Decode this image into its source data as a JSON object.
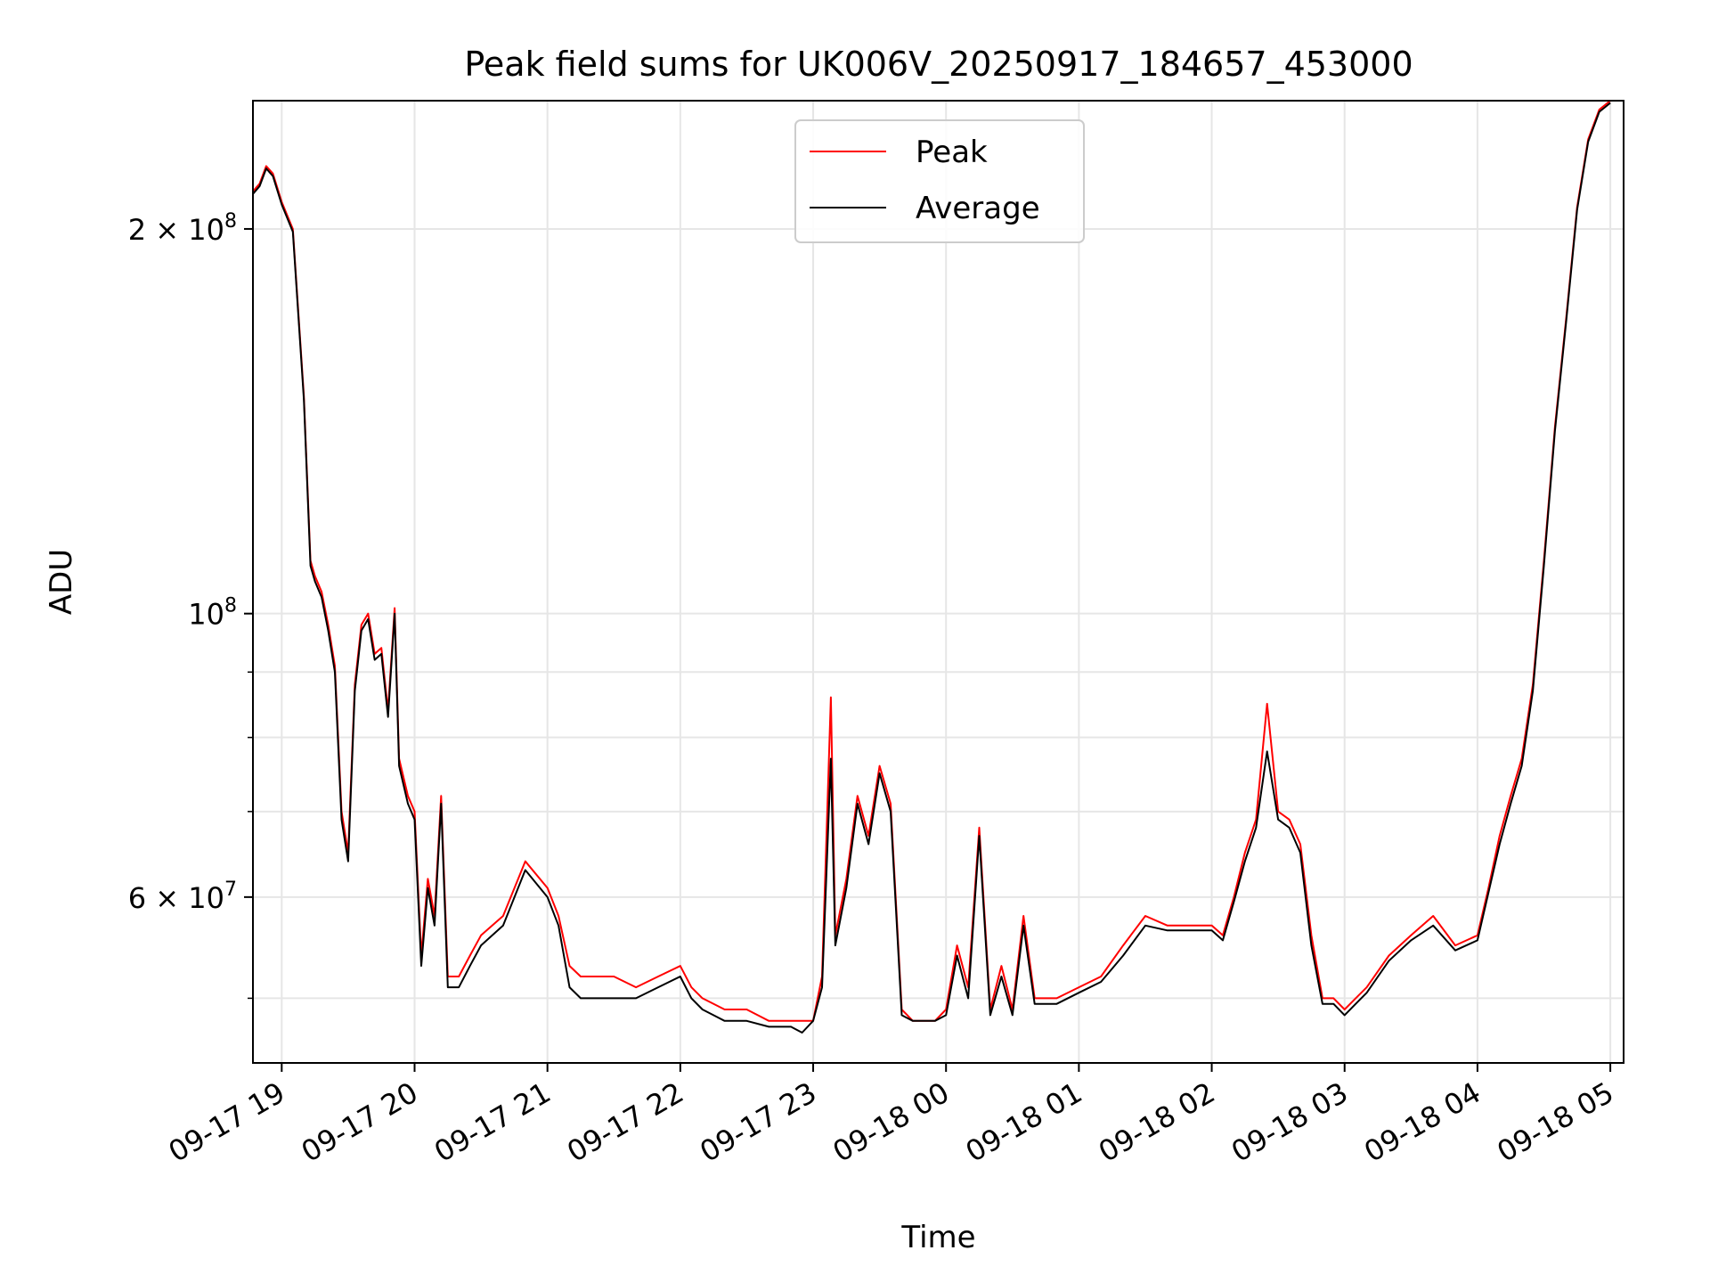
{
  "chart_data": {
    "type": "line",
    "title": "Peak field sums for UK006V_20250917_184657_453000",
    "xlabel": "Time",
    "ylabel": "ADU",
    "y_scale": "log",
    "ylim": [
      44500000,
      252000000
    ],
    "xlim": [
      "09-17 18:47",
      "09-18 05:06"
    ],
    "grid": true,
    "legend_position": "upper center",
    "x_ticks": [
      "09-17 19",
      "09-17 20",
      "09-17 21",
      "09-17 22",
      "09-17 23",
      "09-18 00",
      "09-18 01",
      "09-18 02",
      "09-18 03",
      "09-18 04",
      "09-18 05"
    ],
    "y_major_ticks": [
      {
        "value": 100000000,
        "base": "10",
        "exp": "8"
      },
      {
        "value": 200000000,
        "mant": "2",
        "base": "10",
        "exp": "8"
      },
      {
        "value": 60000000,
        "mant": "6",
        "base": "10",
        "exp": "7"
      }
    ],
    "y_minor_ticks": [
      50000000,
      70000000,
      80000000,
      90000000
    ],
    "series": [
      {
        "name": "Peak",
        "color": "#ff0000",
        "x": [
          "09-17 18:47",
          "09-17 18:50",
          "09-17 18:53",
          "09-17 18:56",
          "09-17 19:00",
          "09-17 19:05",
          "09-17 19:10",
          "09-17 19:13",
          "09-17 19:15",
          "09-17 19:18",
          "09-17 19:21",
          "09-17 19:24",
          "09-17 19:27",
          "09-17 19:30",
          "09-17 19:33",
          "09-17 19:36",
          "09-17 19:39",
          "09-17 19:42",
          "09-17 19:45",
          "09-17 19:48",
          "09-17 19:51",
          "09-17 19:53",
          "09-17 19:57",
          "09-17 20:00",
          "09-17 20:03",
          "09-17 20:06",
          "09-17 20:09",
          "09-17 20:12",
          "09-17 20:15",
          "09-17 20:20",
          "09-17 20:25",
          "09-17 20:30",
          "09-17 20:40",
          "09-17 20:50",
          "09-17 21:00",
          "09-17 21:05",
          "09-17 21:10",
          "09-17 21:15",
          "09-17 21:20",
          "09-17 21:30",
          "09-17 21:40",
          "09-17 21:50",
          "09-17 22:00",
          "09-17 22:05",
          "09-17 22:10",
          "09-17 22:20",
          "09-17 22:30",
          "09-17 22:40",
          "09-17 22:50",
          "09-17 22:55",
          "09-17 23:00",
          "09-17 23:04",
          "09-17 23:08",
          "09-17 23:10",
          "09-17 23:15",
          "09-17 23:20",
          "09-17 23:25",
          "09-17 23:30",
          "09-17 23:35",
          "09-17 23:40",
          "09-17 23:45",
          "09-17 23:50",
          "09-17 23:55",
          "09-18 00:00",
          "09-18 00:05",
          "09-18 00:10",
          "09-18 00:15",
          "09-18 00:20",
          "09-18 00:25",
          "09-18 00:30",
          "09-18 00:35",
          "09-18 00:40",
          "09-18 00:45",
          "09-18 00:50",
          "09-18 01:00",
          "09-18 01:10",
          "09-18 01:20",
          "09-18 01:30",
          "09-18 01:40",
          "09-18 01:50",
          "09-18 02:00",
          "09-18 02:05",
          "09-18 02:10",
          "09-18 02:15",
          "09-18 02:20",
          "09-18 02:25",
          "09-18 02:30",
          "09-18 02:35",
          "09-18 02:40",
          "09-18 02:45",
          "09-18 02:50",
          "09-18 02:55",
          "09-18 03:00",
          "09-18 03:05",
          "09-18 03:10",
          "09-18 03:20",
          "09-18 03:30",
          "09-18 03:40",
          "09-18 03:50",
          "09-18 04:00",
          "09-18 04:05",
          "09-18 04:10",
          "09-18 04:15",
          "09-18 04:20",
          "09-18 04:25",
          "09-18 04:30",
          "09-18 04:35",
          "09-18 04:40",
          "09-18 04:45",
          "09-18 04:50",
          "09-18 04:55",
          "09-18 05:00"
        ],
        "values": [
          214,
          217,
          224,
          221,
          210,
          200,
          148,
          110,
          107,
          104,
          98,
          91,
          70,
          65,
          88,
          98,
          100,
          93,
          94,
          84,
          101,
          77,
          72,
          70,
          54,
          62,
          58,
          72,
          52,
          52,
          54,
          56,
          58,
          64,
          61,
          58,
          53,
          52,
          52,
          52,
          51,
          52,
          53,
          51,
          50,
          49,
          49,
          48,
          48,
          48,
          48,
          52,
          86,
          56,
          62,
          72,
          67,
          76,
          71,
          49,
          48,
          48,
          48,
          49,
          55,
          51,
          68,
          49,
          53,
          49,
          58,
          50,
          50,
          50,
          51,
          52,
          55,
          58,
          57,
          57,
          57,
          56,
          60,
          65,
          69,
          85,
          70,
          69,
          66,
          56,
          50,
          50,
          49,
          50,
          51,
          54,
          56,
          58,
          55,
          56,
          61,
          67,
          72,
          77,
          88,
          110,
          140,
          170,
          208,
          235,
          248,
          252
        ],
        "value_unit": "millions ADU"
      },
      {
        "name": "Average",
        "color": "#000000",
        "x": [
          "09-17 18:47",
          "09-17 18:50",
          "09-17 18:53",
          "09-17 18:56",
          "09-17 19:00",
          "09-17 19:05",
          "09-17 19:10",
          "09-17 19:13",
          "09-17 19:15",
          "09-17 19:18",
          "09-17 19:21",
          "09-17 19:24",
          "09-17 19:27",
          "09-17 19:30",
          "09-17 19:33",
          "09-17 19:36",
          "09-17 19:39",
          "09-17 19:42",
          "09-17 19:45",
          "09-17 19:48",
          "09-17 19:51",
          "09-17 19:53",
          "09-17 19:57",
          "09-17 20:00",
          "09-17 20:03",
          "09-17 20:06",
          "09-17 20:09",
          "09-17 20:12",
          "09-17 20:15",
          "09-17 20:20",
          "09-17 20:25",
          "09-17 20:30",
          "09-17 20:40",
          "09-17 20:50",
          "09-17 21:00",
          "09-17 21:05",
          "09-17 21:10",
          "09-17 21:15",
          "09-17 21:20",
          "09-17 21:30",
          "09-17 21:40",
          "09-17 21:50",
          "09-17 22:00",
          "09-17 22:05",
          "09-17 22:10",
          "09-17 22:20",
          "09-17 22:30",
          "09-17 22:40",
          "09-17 22:50",
          "09-17 22:55",
          "09-17 23:00",
          "09-17 23:04",
          "09-17 23:08",
          "09-17 23:10",
          "09-17 23:15",
          "09-17 23:20",
          "09-17 23:25",
          "09-17 23:30",
          "09-17 23:35",
          "09-17 23:40",
          "09-17 23:45",
          "09-17 23:50",
          "09-17 23:55",
          "09-18 00:00",
          "09-18 00:05",
          "09-18 00:10",
          "09-18 00:15",
          "09-18 00:20",
          "09-18 00:25",
          "09-18 00:30",
          "09-18 00:35",
          "09-18 00:40",
          "09-18 00:45",
          "09-18 00:50",
          "09-18 01:00",
          "09-18 01:10",
          "09-18 01:20",
          "09-18 01:30",
          "09-18 01:40",
          "09-18 01:50",
          "09-18 02:00",
          "09-18 02:05",
          "09-18 02:10",
          "09-18 02:15",
          "09-18 02:20",
          "09-18 02:25",
          "09-18 02:30",
          "09-18 02:35",
          "09-18 02:40",
          "09-18 02:45",
          "09-18 02:50",
          "09-18 02:55",
          "09-18 03:00",
          "09-18 03:05",
          "09-18 03:10",
          "09-18 03:20",
          "09-18 03:30",
          "09-18 03:40",
          "09-18 03:50",
          "09-18 04:00",
          "09-18 04:05",
          "09-18 04:10",
          "09-18 04:15",
          "09-18 04:20",
          "09-18 04:25",
          "09-18 04:30",
          "09-18 04:35",
          "09-18 04:40",
          "09-18 04:45",
          "09-18 04:50",
          "09-18 04:55",
          "09-18 05:00"
        ],
        "values": [
          213,
          216,
          223,
          220,
          209,
          199,
          147,
          109,
          106,
          103,
          97,
          90,
          69,
          64,
          87,
          97,
          99,
          92,
          93,
          83,
          100,
          76,
          71,
          69,
          53,
          61,
          57,
          71,
          51,
          51,
          53,
          55,
          57,
          63,
          60,
          57,
          51,
          50,
          50,
          50,
          50,
          51,
          52,
          50,
          49,
          48,
          48,
          47.5,
          47.5,
          47,
          48,
          51,
          77,
          55,
          61,
          71,
          66,
          75,
          70,
          48.5,
          48,
          48,
          48,
          48.5,
          54,
          50,
          67,
          48.5,
          52,
          48.5,
          57,
          49.5,
          49.5,
          49.5,
          50.5,
          51.5,
          54,
          57,
          56.5,
          56.5,
          56.5,
          55.5,
          59.5,
          64,
          68,
          78,
          69,
          68,
          65,
          55,
          49.5,
          49.5,
          48.5,
          49.5,
          50.5,
          53.5,
          55.5,
          57,
          54.5,
          55.5,
          60.5,
          66,
          71,
          76,
          87,
          109,
          139,
          169,
          207,
          234,
          247,
          251
        ],
        "value_unit": "millions ADU"
      }
    ]
  }
}
